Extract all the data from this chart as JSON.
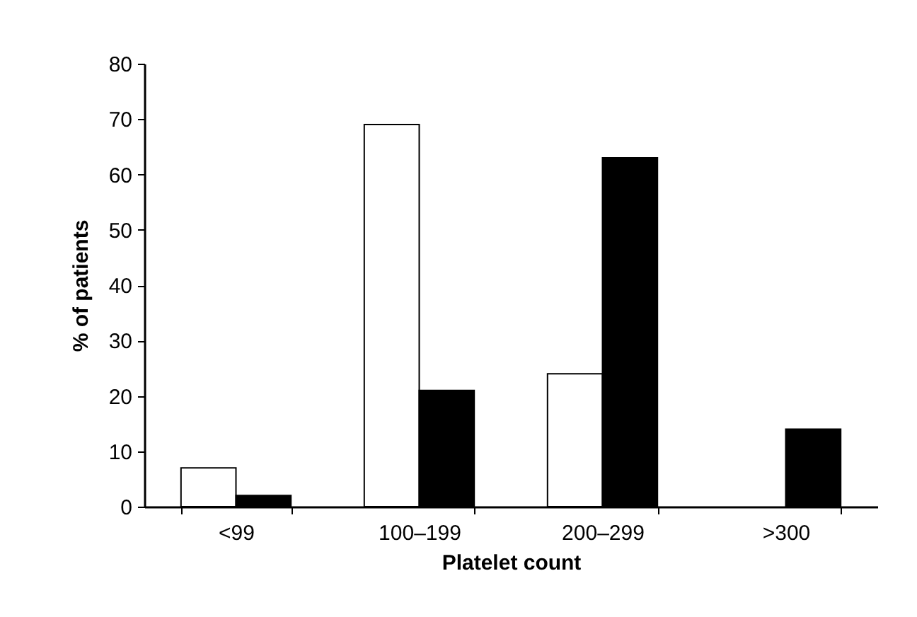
{
  "chart_data": {
    "type": "bar",
    "xlabel": "Platelet count",
    "ylabel": "% of patients",
    "categories": [
      "<99",
      "100–199",
      "200–299",
      ">300"
    ],
    "series": [
      {
        "color": "#ffffff",
        "values": [
          7,
          69,
          24,
          null
        ]
      },
      {
        "color": "#000000",
        "values": [
          2,
          21,
          63,
          14
        ]
      }
    ],
    "ylim": [
      0,
      80
    ],
    "yticks": [
      0,
      10,
      20,
      30,
      40,
      50,
      60,
      70,
      80
    ],
    "grid": false,
    "legend": false
  }
}
